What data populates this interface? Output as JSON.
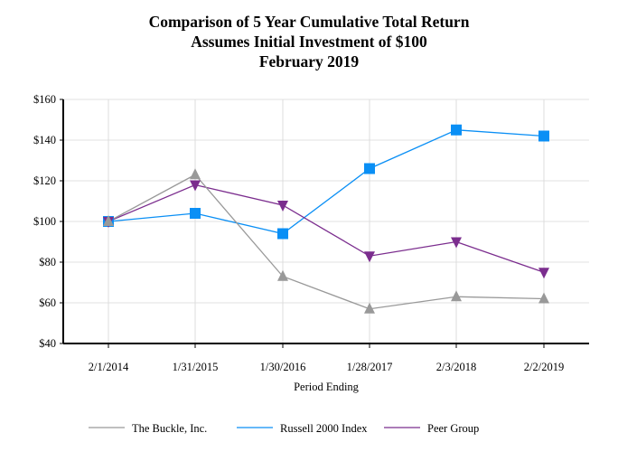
{
  "chart_data": {
    "type": "line",
    "title": [
      "Comparison of 5 Year Cumulative Total Return",
      "Assumes Initial Investment of $100",
      "February 2019"
    ],
    "xlabel": "Period Ending",
    "ylabel": "",
    "categories": [
      "2/1/2014",
      "1/31/2015",
      "1/30/2016",
      "1/28/2017",
      "2/3/2018",
      "2/2/2019"
    ],
    "ylim": [
      40,
      160
    ],
    "yticks": [
      40,
      60,
      80,
      100,
      120,
      140,
      160
    ],
    "ytick_labels": [
      "$40",
      "$60",
      "$80",
      "$100",
      "$120",
      "$140",
      "$160"
    ],
    "grid": true,
    "legend": "bottom",
    "series": [
      {
        "name": "The Buckle, Inc.",
        "values": [
          100,
          123,
          73,
          57,
          63,
          62
        ],
        "color": "#999999",
        "marker": "triangle-up"
      },
      {
        "name": "Russell 2000 Index",
        "values": [
          100,
          104,
          94,
          126,
          145,
          142
        ],
        "color": "#0a8ff5",
        "marker": "square"
      },
      {
        "name": "Peer Group",
        "values": [
          100,
          118,
          108,
          83,
          90,
          75
        ],
        "color": "#7b2d8e",
        "marker": "triangle-down"
      }
    ]
  }
}
